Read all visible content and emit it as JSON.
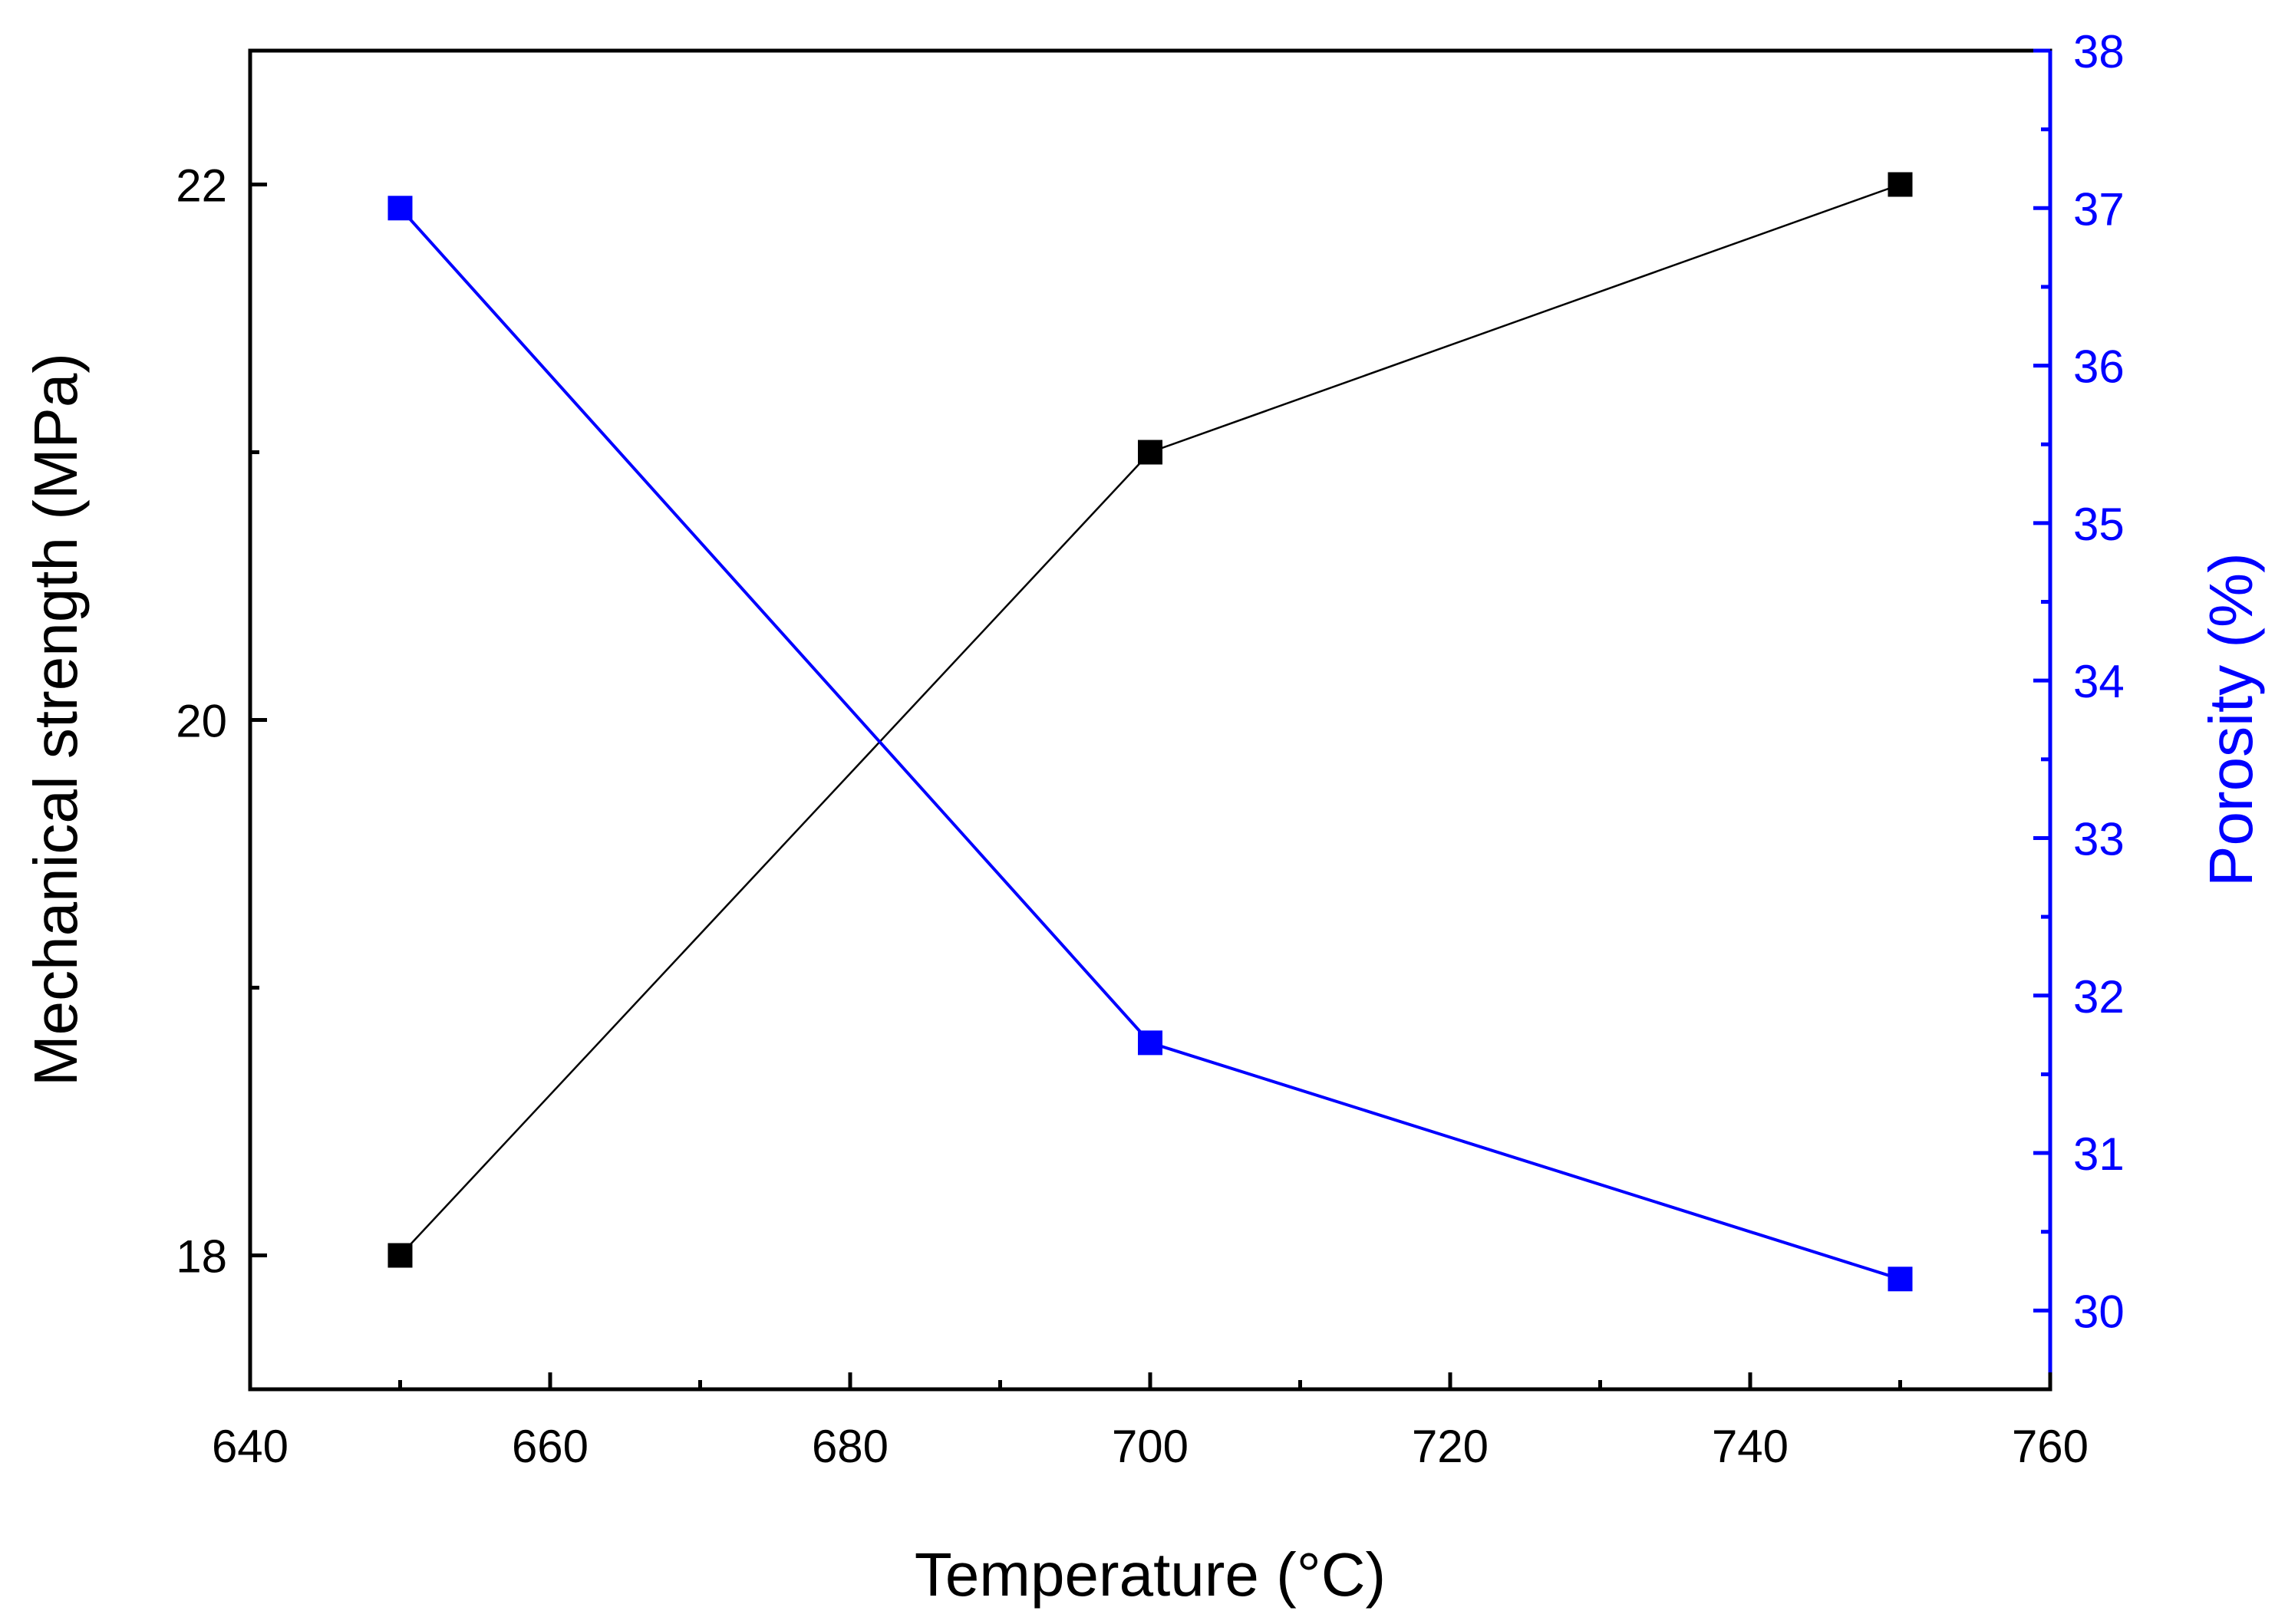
{
  "chart_data": {
    "type": "line",
    "title": "",
    "xlabel": "Temperature (°C)",
    "ylabel": "Mechanical strength (MPa)",
    "y2label": "Porosity (%)",
    "xlim": [
      640,
      760
    ],
    "ylim": [
      17.5,
      22.5
    ],
    "y2lim": [
      29.5,
      38
    ],
    "x_major_ticks": [
      640,
      660,
      680,
      700,
      720,
      740,
      760
    ],
    "x_minor_ticks": [
      650,
      670,
      690,
      710,
      730,
      750
    ],
    "y_major_ticks": [
      18,
      20,
      22
    ],
    "y_minor_ticks": [
      19,
      21
    ],
    "y2_major_ticks": [
      30,
      31,
      32,
      33,
      34,
      35,
      36,
      37,
      38
    ],
    "y2_minor_ticks": [
      30.5,
      31.5,
      32.5,
      33.5,
      34.5,
      35.5,
      36.5,
      37.5
    ],
    "grid": false,
    "series": [
      {
        "name": "Mechanical strength",
        "axis": "left",
        "color": "#000000",
        "marker": "square",
        "x": [
          650,
          700,
          750
        ],
        "values": [
          18,
          21,
          22
        ]
      },
      {
        "name": "Porosity",
        "axis": "right",
        "color": "#0000ff",
        "marker": "square",
        "x": [
          650,
          700,
          750
        ],
        "values": [
          37,
          31.7,
          30.2
        ]
      }
    ]
  }
}
